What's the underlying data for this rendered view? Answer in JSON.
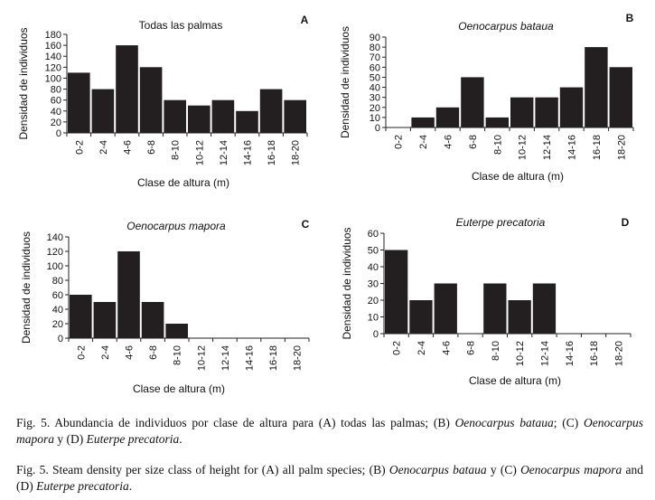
{
  "chart_data": [
    {
      "id": "A",
      "type": "bar",
      "title": "Todas las palmas",
      "title_italic": false,
      "panel_letter": "A",
      "categories": [
        "0-2",
        "2-4",
        "4-6",
        "6-8",
        "8-10",
        "10-12",
        "12-14",
        "14-16",
        "16-18",
        "18-20"
      ],
      "values": [
        110,
        80,
        160,
        120,
        60,
        50,
        60,
        40,
        80,
        60
      ],
      "xlabel": "Clase de altura (m)",
      "ylabel": "Densidad de individuos",
      "ylim": [
        0,
        180
      ],
      "yticks": [
        0,
        20,
        40,
        60,
        80,
        100,
        120,
        140,
        160,
        180
      ],
      "bar_color": "#231f20"
    },
    {
      "id": "B",
      "type": "bar",
      "title": "Oenocarpus bataua",
      "title_italic": true,
      "panel_letter": "B",
      "categories": [
        "0-2",
        "2-4",
        "4-6",
        "6-8",
        "8-10",
        "10-12",
        "12-14",
        "14-16",
        "16-18",
        "18-20"
      ],
      "values": [
        0,
        10,
        20,
        50,
        10,
        30,
        30,
        40,
        80,
        60
      ],
      "xlabel": "Clase de altura (m)",
      "ylabel": "Densidad de individuos",
      "ylim": [
        0,
        90
      ],
      "yticks": [
        0,
        10,
        20,
        30,
        40,
        50,
        60,
        70,
        80,
        90
      ],
      "bar_color": "#231f20"
    },
    {
      "id": "C",
      "type": "bar",
      "title": "Oenocarpus mapora",
      "title_italic": true,
      "panel_letter": "C",
      "categories": [
        "0-2",
        "2-4",
        "4-6",
        "6-8",
        "8-10",
        "10-12",
        "12-14",
        "14-16",
        "16-18",
        "18-20"
      ],
      "values": [
        60,
        50,
        120,
        50,
        20,
        0,
        0,
        0,
        0,
        0
      ],
      "xlabel": "Clase de altura (m)",
      "ylabel": "Densidad de individuos",
      "ylim": [
        0,
        140
      ],
      "yticks": [
        0,
        20,
        40,
        60,
        80,
        100,
        120,
        140
      ],
      "bar_color": "#231f20"
    },
    {
      "id": "D",
      "type": "bar",
      "title": "Euterpe precatoria",
      "title_italic": true,
      "panel_letter": "D",
      "categories": [
        "0-2",
        "2-4",
        "4-6",
        "6-8",
        "8-10",
        "10-12",
        "12-14",
        "14-16",
        "16-18",
        "18-20"
      ],
      "values": [
        50,
        20,
        30,
        0,
        30,
        20,
        30,
        0,
        0,
        0
      ],
      "xlabel": "Clase de altura (m)",
      "ylabel": "Densidad de individuos",
      "ylim": [
        0,
        60
      ],
      "yticks": [
        0,
        10,
        20,
        30,
        40,
        50,
        60
      ],
      "bar_color": "#231f20"
    }
  ],
  "captions": {
    "es": {
      "text_1": "Fig. 5. Abundancia de individuos por clase de altura para (A) todas las palmas; (B) ",
      "italic_1": "Oenocarpus bataua",
      "text_2": "; (C) ",
      "italic_2": "Oenocarpus mapora",
      "text_3": " y (D) ",
      "italic_3": "Euterpe precatoria",
      "text_4": "."
    },
    "en": {
      "text_1": "Fig. 5. Steam density per size class of height for (A) all palm species; (B) ",
      "italic_1": "Oenocarpus bataua",
      "text_2": " y (C) ",
      "italic_2": "Oenocarpus mapora",
      "text_3": " and (D) ",
      "italic_3": "Euterpe precatoria",
      "text_4": "."
    }
  }
}
